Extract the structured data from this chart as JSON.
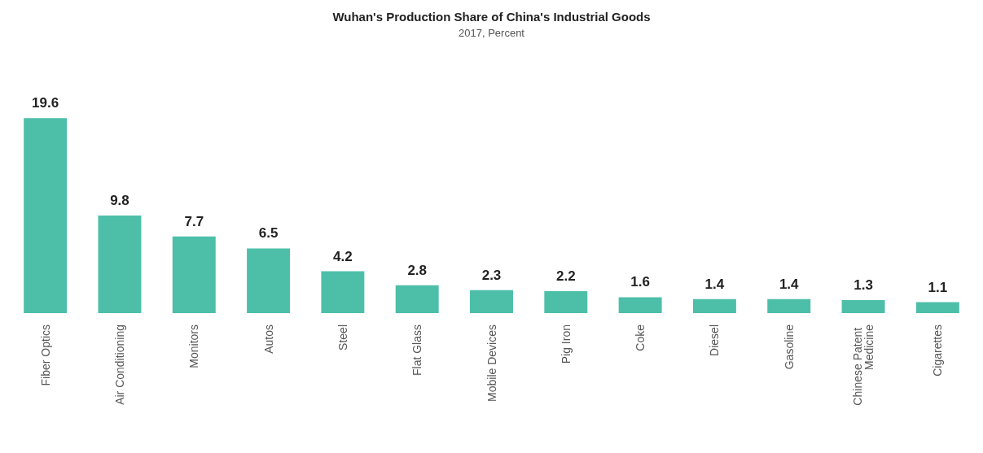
{
  "chart_data": {
    "type": "bar",
    "title": "Wuhan's Production Share of China's Industrial Goods",
    "subtitle": "2017, Percent",
    "categories": [
      "Fiber Optics",
      "Air Conditioning",
      "Monitors",
      "Autos",
      "Steel",
      "Flat Glass",
      "Mobile Devices",
      "Pig Iron",
      "Coke",
      "Diesel",
      "Gasoline",
      "Chinese Patent Medicine",
      "Cigarettes"
    ],
    "values": [
      19.6,
      9.8,
      7.7,
      6.5,
      4.2,
      2.8,
      2.3,
      2.2,
      1.6,
      1.4,
      1.4,
      1.3,
      1.1
    ],
    "color": "#4dbfa9",
    "data_labels": true
  }
}
